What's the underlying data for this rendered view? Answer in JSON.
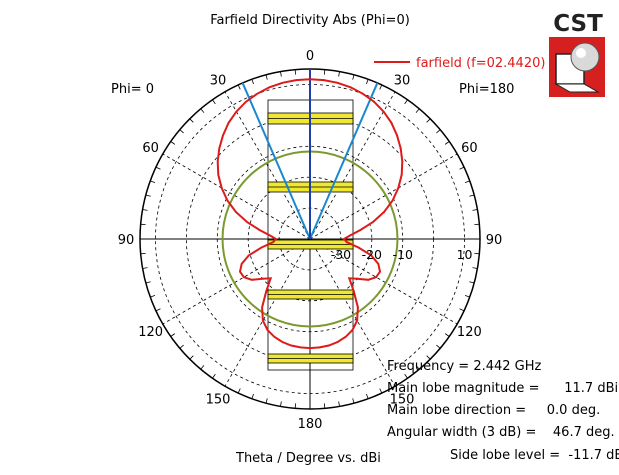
{
  "chart_data": {
    "type": "polar",
    "title": "Farfield Directivity Abs (Phi=0)",
    "xlabel": "Theta / Degree vs. dBi",
    "phi_left_label": "Phi=  0",
    "phi_right_label": "Phi=180",
    "radial_range_dbi": [
      -40,
      15
    ],
    "radial_ticks": [
      -30,
      -20,
      -10,
      10
    ],
    "angle_tick_labels": [
      "0",
      "30",
      "60",
      "90",
      "120",
      "150",
      "180",
      "150",
      "120",
      "90",
      "60",
      "30"
    ],
    "angle_tick_values_deg": [
      0,
      30,
      60,
      90,
      120,
      150,
      180,
      210,
      240,
      270,
      300,
      330
    ],
    "legend": {
      "label": "farfield (f=02.4420)",
      "color": "#dd1b1b",
      "position": "top-right"
    },
    "reference_circle_dbi": -11.7,
    "beamwidth_lines_deg": [
      -23.35,
      23.35
    ],
    "series": [
      {
        "name": "farfield (f=02.4420)",
        "theta_deg": [
          0,
          5,
          10,
          15,
          20,
          25,
          30,
          35,
          40,
          45,
          50,
          55,
          60,
          65,
          70,
          75,
          80,
          85,
          90,
          95,
          100,
          105,
          110,
          115,
          120,
          125,
          130,
          135,
          140,
          145,
          150,
          155,
          160,
          165,
          170,
          175,
          180
        ],
        "dbi": [
          11.7,
          11.6,
          11.3,
          10.8,
          10.0,
          9.0,
          7.6,
          5.9,
          3.8,
          1.5,
          -1.0,
          -3.8,
          -7.0,
          -10.5,
          -14.5,
          -19.0,
          -23.5,
          -27.0,
          -29.0,
          -28.0,
          -24.0,
          -19.5,
          -16.5,
          -15.0,
          -15.3,
          -17.0,
          -20.0,
          -22.0,
          -18.0,
          -13.0,
          -9.5,
          -7.5,
          -6.3,
          -5.5,
          -5.0,
          -4.8,
          -4.7
        ]
      }
    ],
    "colors": {
      "farfield": "#dd1b1b",
      "reference_circle": "#7a9a2e",
      "beam_lines": "#1a88d0",
      "grid": "#000000",
      "label_box": "#f0e830"
    },
    "info": {
      "frequency": "Frequency = 2.442 GHz",
      "main_lobe_magnitude": "Main lobe magnitude =      11.7 dBi",
      "main_lobe_direction": "Main lobe direction =     0.0 deg.",
      "angular_width": "Angular width (3 dB) =    46.7 deg.",
      "side_lobe_level": "Side lobe level =  -11.7 dB"
    }
  },
  "logo": {
    "text": "CST"
  }
}
